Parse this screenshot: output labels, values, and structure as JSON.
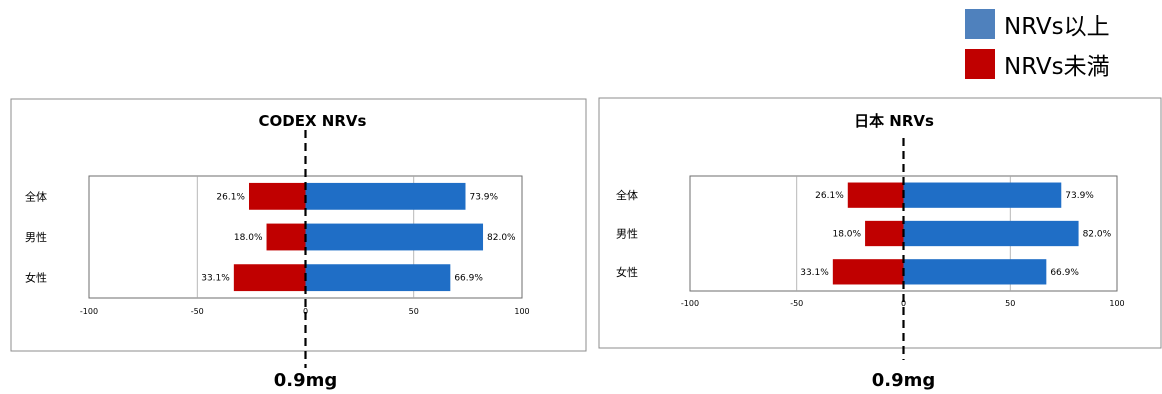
{
  "legend": {
    "items": [
      {
        "label": "NRVs以上",
        "color": "#4F81BD"
      },
      {
        "label": "NRVs未満",
        "color": "#C00000"
      }
    ]
  },
  "chart_data": [
    {
      "type": "bar",
      "orientation": "horizontal-diverging",
      "title": "CODEX NRVs",
      "categories": [
        "全体",
        "男性",
        "女性"
      ],
      "series": [
        {
          "name": "NRVs以上",
          "values": [
            73.9,
            82.0,
            66.9
          ],
          "labels": [
            "73.9%",
            "82.0%",
            "66.9%"
          ],
          "color": "#1F6EC6"
        },
        {
          "name": "NRVs未満",
          "values": [
            -26.1,
            -18.0,
            -33.1
          ],
          "labels": [
            "26.1%",
            "18.0%",
            "33.1%"
          ],
          "color": "#C00000"
        }
      ],
      "xlim": [
        -100,
        100
      ],
      "xticks": [
        "-100",
        "-50",
        "0",
        "50",
        "100"
      ],
      "grid": true,
      "reference_label": "0.9mg"
    },
    {
      "type": "bar",
      "orientation": "horizontal-diverging",
      "title": "日本 NRVs",
      "categories": [
        "全体",
        "男性",
        "女性"
      ],
      "series": [
        {
          "name": "NRVs以上",
          "values": [
            73.9,
            82.0,
            66.9
          ],
          "labels": [
            "73.9%",
            "82.0%",
            "66.9%"
          ],
          "color": "#1F6EC6"
        },
        {
          "name": "NRVs未満",
          "values": [
            -26.1,
            -18.0,
            -33.1
          ],
          "labels": [
            "26.1%",
            "18.0%",
            "33.1%"
          ],
          "color": "#C00000"
        }
      ],
      "xlim": [
        -100,
        100
      ],
      "xticks": [
        "-100",
        "-50",
        "0",
        "50",
        "100"
      ],
      "grid": true,
      "reference_label": "0.9mg"
    }
  ]
}
